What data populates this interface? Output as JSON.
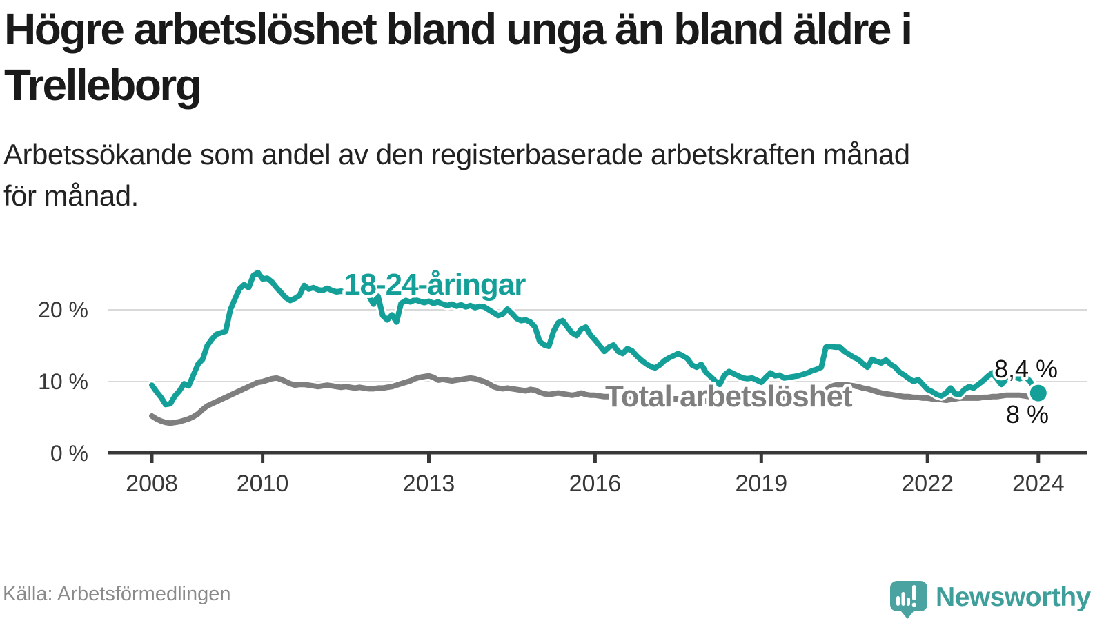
{
  "header": {
    "title_line1": "Högre arbetslöshet bland unga än bland äldre i",
    "title_line2": "Trelleborg",
    "subtitle_line1": "Arbetssökande som andel av den registerbaserade arbetskraften månad",
    "subtitle_line2": "för månad."
  },
  "footer": {
    "source": "Källa: Arbetsförmedlingen",
    "brand": "Newsworthy"
  },
  "colors": {
    "accent_teal": "#14a098",
    "series_gray": "#7f7f7f",
    "axis": "#383838",
    "grid": "#d9d9d9",
    "logo_bubble": "#4aa3a0",
    "logo_text": "#3e9e9a",
    "end_label_text": "#111111"
  },
  "chart_data": {
    "type": "line",
    "title": "Högre arbetslöshet bland unga än bland äldre i Trelleborg",
    "subtitle": "Arbetssökande som andel av den registerbaserade arbetskraften månad för månad.",
    "source": "Källa: Arbetsförmedlingen",
    "unit": "%",
    "x_start_year": 2008.0,
    "x_step_months": 1,
    "x_ticks": [
      2008,
      2010,
      2013,
      2016,
      2019,
      2022,
      2024
    ],
    "x_tick_labels": [
      "2008",
      "2010",
      "2013",
      "2016",
      "2019",
      "2022",
      "2024"
    ],
    "y_tick_values": [
      0,
      10,
      20
    ],
    "y_tick_labels": [
      "0 %",
      "10 %",
      "20 %"
    ],
    "ylim": [
      0,
      27
    ],
    "grid": true,
    "legend_position": "inline-labels",
    "series": [
      {
        "name": "18-24-åringar",
        "color": "#14a098",
        "end_label": "8,4 %",
        "end_value": 8.4,
        "values": [
          9.5,
          8.6,
          7.8,
          6.8,
          6.9,
          8.0,
          8.7,
          9.7,
          9.4,
          10.9,
          12.4,
          13.1,
          15.0,
          15.9,
          16.6,
          16.8,
          17.0,
          20.0,
          21.5,
          22.9,
          23.5,
          23.1,
          24.8,
          25.2,
          24.3,
          24.4,
          23.9,
          23.1,
          22.4,
          21.7,
          21.3,
          21.6,
          22.0,
          23.4,
          22.9,
          23.1,
          22.8,
          22.7,
          23.0,
          22.7,
          22.5,
          22.6,
          22.4,
          22.2,
          22.3,
          22.1,
          22.3,
          22.0,
          20.8,
          21.9,
          19.2,
          18.6,
          19.3,
          18.3,
          20.9,
          21.3,
          21.1,
          21.4,
          21.2,
          21.0,
          21.2,
          20.9,
          21.1,
          20.8,
          20.6,
          20.8,
          20.5,
          20.7,
          20.4,
          20.6,
          20.3,
          20.5,
          20.4,
          20.0,
          19.6,
          19.2,
          19.4,
          20.1,
          19.5,
          18.8,
          18.5,
          18.6,
          18.3,
          17.6,
          15.6,
          15.1,
          14.9,
          17.0,
          18.2,
          18.5,
          17.6,
          16.8,
          16.4,
          17.3,
          17.6,
          16.5,
          15.8,
          15.0,
          14.2,
          14.8,
          15.1,
          14.2,
          13.9,
          14.6,
          14.3,
          13.6,
          13.0,
          12.5,
          12.1,
          11.9,
          12.3,
          12.9,
          13.3,
          13.6,
          13.9,
          13.6,
          13.2,
          12.3,
          12.0,
          12.4,
          11.3,
          10.7,
          10.1,
          9.6,
          10.9,
          11.4,
          11.1,
          10.8,
          10.5,
          10.4,
          10.5,
          10.2,
          9.9,
          10.6,
          11.2,
          10.8,
          10.9,
          10.5,
          10.6,
          10.7,
          10.8,
          11.0,
          11.2,
          11.5,
          11.7,
          12.0,
          14.8,
          14.9,
          14.8,
          14.8,
          14.2,
          13.8,
          13.4,
          13.1,
          12.5,
          12.0,
          13.1,
          12.8,
          12.6,
          13.0,
          12.4,
          12.0,
          11.3,
          10.9,
          10.4,
          10.0,
          10.3,
          9.6,
          8.9,
          8.6,
          8.2,
          8.0,
          8.4,
          9.1,
          8.3,
          8.2,
          8.9,
          9.3,
          9.1,
          9.6,
          10.1,
          10.7,
          11.2,
          10.4,
          9.6,
          10.3,
          10.9,
          10.6,
          10.4,
          10.7,
          10.2,
          9.3,
          8.4
        ]
      },
      {
        "name": "Total arbetslöshet",
        "color": "#7f7f7f",
        "end_label": "8 %",
        "end_value": 8.0,
        "values": [
          5.2,
          4.8,
          4.5,
          4.3,
          4.2,
          4.3,
          4.4,
          4.6,
          4.8,
          5.1,
          5.5,
          6.1,
          6.6,
          6.9,
          7.2,
          7.5,
          7.8,
          8.1,
          8.4,
          8.7,
          9.0,
          9.3,
          9.6,
          9.9,
          10.0,
          10.2,
          10.4,
          10.5,
          10.3,
          10.0,
          9.7,
          9.5,
          9.6,
          9.6,
          9.5,
          9.4,
          9.3,
          9.4,
          9.5,
          9.4,
          9.3,
          9.2,
          9.3,
          9.2,
          9.1,
          9.2,
          9.1,
          9.0,
          9.0,
          9.1,
          9.1,
          9.2,
          9.3,
          9.5,
          9.7,
          9.9,
          10.1,
          10.4,
          10.6,
          10.7,
          10.8,
          10.6,
          10.2,
          10.3,
          10.2,
          10.1,
          10.2,
          10.3,
          10.4,
          10.5,
          10.4,
          10.2,
          10.0,
          9.7,
          9.3,
          9.1,
          9.0,
          9.1,
          9.0,
          8.9,
          8.8,
          8.7,
          8.9,
          8.8,
          8.5,
          8.3,
          8.2,
          8.3,
          8.4,
          8.3,
          8.2,
          8.1,
          8.2,
          8.4,
          8.2,
          8.1,
          8.1,
          8.0,
          7.9,
          7.9,
          8.0,
          8.0,
          8.1,
          8.0,
          7.9,
          7.8,
          7.8,
          7.7,
          7.7,
          7.6,
          7.6,
          7.5,
          7.5,
          7.6,
          7.6,
          7.5,
          7.4,
          7.4,
          7.3,
          7.3,
          7.3,
          7.2,
          7.2,
          7.1,
          7.1,
          7.2,
          7.2,
          7.1,
          7.1,
          7.2,
          7.2,
          7.3,
          7.4,
          7.4,
          7.5,
          7.5,
          7.6,
          7.6,
          7.7,
          7.7,
          7.8,
          7.8,
          7.9,
          8.0,
          8.0,
          8.1,
          8.8,
          9.3,
          9.5,
          9.6,
          9.6,
          9.5,
          9.4,
          9.3,
          9.1,
          9.0,
          8.8,
          8.6,
          8.4,
          8.3,
          8.2,
          8.1,
          8.0,
          7.9,
          7.9,
          7.8,
          7.8,
          7.7,
          7.7,
          7.6,
          7.5,
          7.5,
          7.4,
          7.5,
          7.6,
          7.7,
          7.7,
          7.7,
          7.7,
          7.7,
          7.8,
          7.8,
          7.9,
          7.9,
          8.0,
          8.1,
          8.1,
          8.1,
          8.1,
          8.0,
          7.9,
          7.9,
          8.0
        ]
      }
    ]
  }
}
